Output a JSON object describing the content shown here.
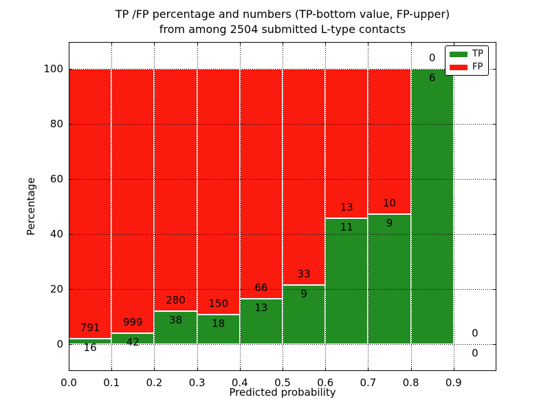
{
  "chart_data": {
    "type": "bar",
    "stacked": true,
    "title_line1": "TP /FP percentage and numbers (TP-bottom value, FP-upper)",
    "title_line2": "from among 2504 submitted L-type contacts",
    "xlabel": "Predicted probability",
    "ylabel": "Percentage",
    "bin_edges": [
      0.0,
      0.1,
      0.2,
      0.3,
      0.4,
      0.5,
      0.6,
      0.7,
      0.8,
      0.9,
      1.0
    ],
    "series": [
      {
        "name": "TP",
        "color": "#228b22",
        "counts": [
          16,
          42,
          38,
          18,
          13,
          9,
          11,
          9,
          6,
          0
        ]
      },
      {
        "name": "FP",
        "color": "#fb1a0e",
        "counts": [
          791,
          999,
          280,
          150,
          66,
          33,
          13,
          10,
          0,
          0
        ]
      }
    ],
    "tp_percent": [
      1.98,
      4.03,
      11.95,
      10.71,
      16.46,
      21.43,
      45.83,
      47.37,
      100.0,
      0.0
    ],
    "bar_total_percent": [
      100,
      100,
      100,
      100,
      100,
      100,
      100,
      100,
      100,
      0
    ],
    "xticks": [
      "0.0",
      "0.1",
      "0.2",
      "0.3",
      "0.4",
      "0.5",
      "0.6",
      "0.7",
      "0.8",
      "0.9"
    ],
    "yticks": [
      "0",
      "20",
      "40",
      "60",
      "80",
      "100"
    ],
    "xlim": [
      0.0,
      1.0
    ],
    "ylim": [
      -9.75,
      109.75
    ],
    "grid": true,
    "legend": {
      "position": "upper right",
      "entries": [
        {
          "label": "TP",
          "color": "#228b22"
        },
        {
          "label": "FP",
          "color": "#fb1a0e"
        }
      ]
    }
  }
}
